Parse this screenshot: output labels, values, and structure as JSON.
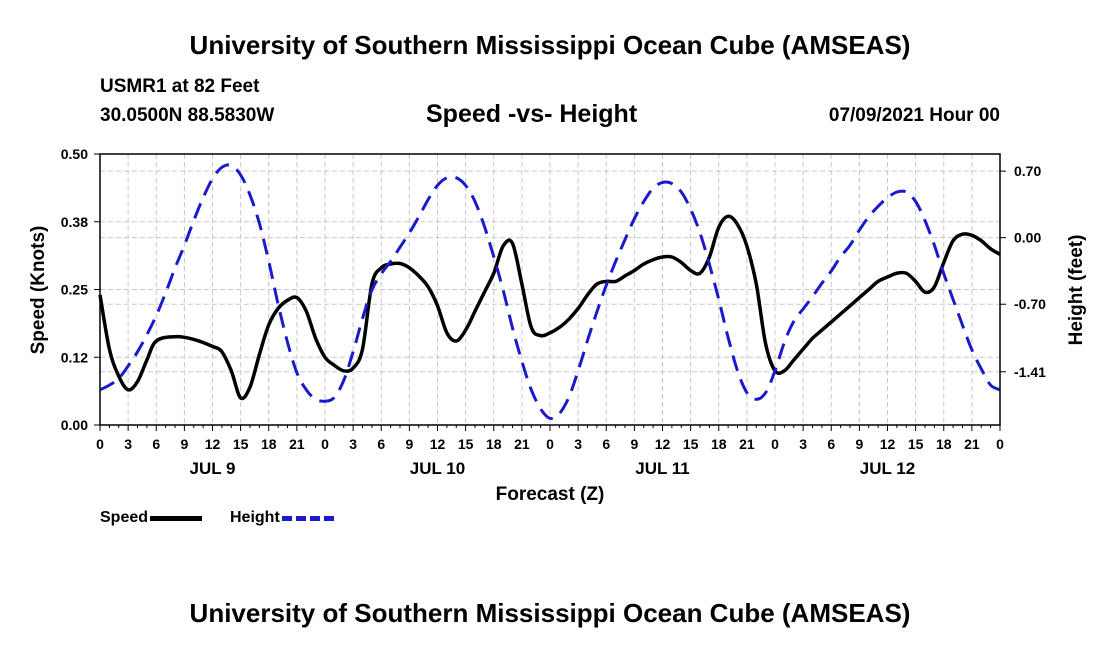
{
  "header": {
    "title": "University of Southern Mississippi Ocean Cube (AMSEAS)",
    "station": "USMR1 at 82 Feet",
    "coords": "30.0500N  88.5830W",
    "chart_title": "Speed -vs- Height",
    "date": "07/09/2021 Hour 00"
  },
  "footer": {
    "title": "University of Southern Mississippi Ocean Cube (AMSEAS)"
  },
  "legend": {
    "speed": "Speed",
    "height": "Height"
  },
  "colors": {
    "speed": "#000000",
    "height": "#1a1acc",
    "grid": "#c8c8c8"
  },
  "chart_data": {
    "type": "line",
    "title": "Speed -vs- Height",
    "xlabel": "Forecast (Z)",
    "ylabel": "Speed (Knots)",
    "y2label": "Height (feet)",
    "grid": true,
    "xlim": [
      0,
      96
    ],
    "ylim": [
      0,
      0.5
    ],
    "y2lim": [
      -1.97,
      0.88
    ],
    "x_ticks": [
      0,
      3,
      6,
      9,
      12,
      15,
      18,
      21,
      24,
      27,
      30,
      33,
      36,
      39,
      42,
      45,
      48,
      51,
      54,
      57,
      60,
      63,
      66,
      69,
      72,
      75,
      78,
      81,
      84,
      87,
      90,
      93,
      96
    ],
    "x_tick_labels": [
      "0",
      "3",
      "6",
      "9",
      "12",
      "15",
      "18",
      "21",
      "0",
      "3",
      "6",
      "9",
      "12",
      "15",
      "18",
      "21",
      "0",
      "3",
      "6",
      "9",
      "12",
      "15",
      "18",
      "21",
      "0",
      "3",
      "6",
      "9",
      "12",
      "15",
      "18",
      "21",
      "0"
    ],
    "y_ticks": [
      0,
      0.125,
      0.25,
      0.375,
      0.5
    ],
    "y_tick_labels": [
      "0.00",
      "0.12",
      "0.25",
      "0.38",
      "0.50"
    ],
    "y2_ticks": [
      0.7,
      0,
      -0.7,
      -1.41
    ],
    "y2_tick_labels": [
      "0.70",
      "0.00",
      "-0.70",
      "-1.41"
    ],
    "day_labels": [
      {
        "x": 12,
        "label": "JUL 9"
      },
      {
        "x": 36,
        "label": "JUL 10"
      },
      {
        "x": 60,
        "label": "JUL 11"
      },
      {
        "x": 84,
        "label": "JUL 12"
      }
    ],
    "series": [
      {
        "name": "Speed",
        "axis": "left",
        "style": "solid",
        "x": [
          0,
          1,
          2,
          3,
          4,
          5,
          6,
          8,
          10,
          12,
          13,
          14,
          15,
          16,
          17,
          18,
          19,
          20,
          21,
          22,
          23,
          24,
          25,
          26,
          27,
          28,
          29,
          30,
          31,
          32,
          33,
          34,
          35,
          36,
          37,
          38,
          39,
          40,
          41,
          42,
          43,
          44,
          45,
          46,
          47,
          48,
          49,
          50,
          51,
          52,
          53,
          54,
          55,
          56,
          57,
          58,
          59,
          60,
          61,
          62,
          63,
          64,
          65,
          66,
          67,
          68,
          69,
          70,
          71,
          72,
          73,
          74,
          75,
          76,
          77,
          78,
          79,
          80,
          81,
          82,
          83,
          84,
          85,
          86,
          87,
          88,
          89,
          90,
          91,
          92,
          93,
          94,
          95,
          96
        ],
        "values": [
          0.24,
          0.14,
          0.09,
          0.065,
          0.08,
          0.12,
          0.155,
          0.163,
          0.158,
          0.145,
          0.135,
          0.1,
          0.05,
          0.07,
          0.13,
          0.185,
          0.215,
          0.23,
          0.235,
          0.21,
          0.16,
          0.125,
          0.11,
          0.1,
          0.105,
          0.14,
          0.26,
          0.29,
          0.297,
          0.298,
          0.29,
          0.275,
          0.255,
          0.22,
          0.17,
          0.155,
          0.175,
          0.21,
          0.245,
          0.28,
          0.33,
          0.335,
          0.26,
          0.18,
          0.165,
          0.17,
          0.18,
          0.195,
          0.215,
          0.24,
          0.26,
          0.265,
          0.265,
          0.275,
          0.285,
          0.297,
          0.305,
          0.31,
          0.31,
          0.3,
          0.285,
          0.28,
          0.31,
          0.365,
          0.385,
          0.37,
          0.33,
          0.26,
          0.15,
          0.1,
          0.1,
          0.12,
          0.14,
          0.16,
          0.175,
          0.19,
          0.205,
          0.22,
          0.235,
          0.25,
          0.265,
          0.273,
          0.28,
          0.28,
          0.265,
          0.245,
          0.255,
          0.3,
          0.34,
          0.352,
          0.35,
          0.34,
          0.325,
          0.315
        ]
      },
      {
        "name": "Height",
        "axis": "right",
        "style": "dashed",
        "x": [
          0,
          1,
          2,
          3,
          4,
          5,
          6,
          7,
          8,
          9,
          10,
          11,
          12,
          13,
          14,
          15,
          16,
          17,
          18,
          19,
          20,
          21,
          22,
          23,
          24,
          25,
          26,
          27,
          28,
          29,
          30,
          31,
          32,
          33,
          34,
          35,
          36,
          37,
          38,
          39,
          40,
          41,
          42,
          43,
          44,
          45,
          46,
          47,
          48,
          49,
          50,
          51,
          52,
          53,
          54,
          55,
          56,
          57,
          58,
          59,
          60,
          61,
          62,
          63,
          64,
          65,
          66,
          67,
          68,
          69,
          70,
          71,
          72,
          73,
          74,
          75,
          76,
          77,
          78,
          79,
          80,
          81,
          82,
          83,
          84,
          85,
          86,
          87,
          88,
          89,
          90,
          91,
          92,
          93,
          94,
          95,
          96
        ],
        "values": [
          -1.6,
          -1.55,
          -1.48,
          -1.35,
          -1.2,
          -1.02,
          -0.82,
          -0.58,
          -0.32,
          -0.08,
          0.18,
          0.42,
          0.62,
          0.74,
          0.76,
          0.66,
          0.45,
          0.15,
          -0.25,
          -0.7,
          -1.1,
          -1.42,
          -1.6,
          -1.7,
          -1.72,
          -1.68,
          -1.5,
          -1.2,
          -0.85,
          -0.55,
          -0.38,
          -0.25,
          -0.1,
          0.05,
          0.22,
          0.4,
          0.55,
          0.63,
          0.63,
          0.55,
          0.38,
          0.12,
          -0.2,
          -0.55,
          -0.95,
          -1.3,
          -1.6,
          -1.8,
          -1.9,
          -1.85,
          -1.68,
          -1.4,
          -1.08,
          -0.78,
          -0.5,
          -0.25,
          -0.02,
          0.2,
          0.38,
          0.52,
          0.58,
          0.57,
          0.48,
          0.3,
          0.05,
          -0.28,
          -0.65,
          -1.05,
          -1.4,
          -1.63,
          -1.7,
          -1.63,
          -1.4,
          -1.1,
          -0.88,
          -0.75,
          -0.62,
          -0.48,
          -0.35,
          -0.2,
          -0.08,
          0.08,
          0.22,
          0.33,
          0.42,
          0.48,
          0.48,
          0.38,
          0.18,
          -0.08,
          -0.38,
          -0.65,
          -0.92,
          -1.18,
          -1.38,
          -1.55,
          -1.6
        ]
      }
    ]
  }
}
